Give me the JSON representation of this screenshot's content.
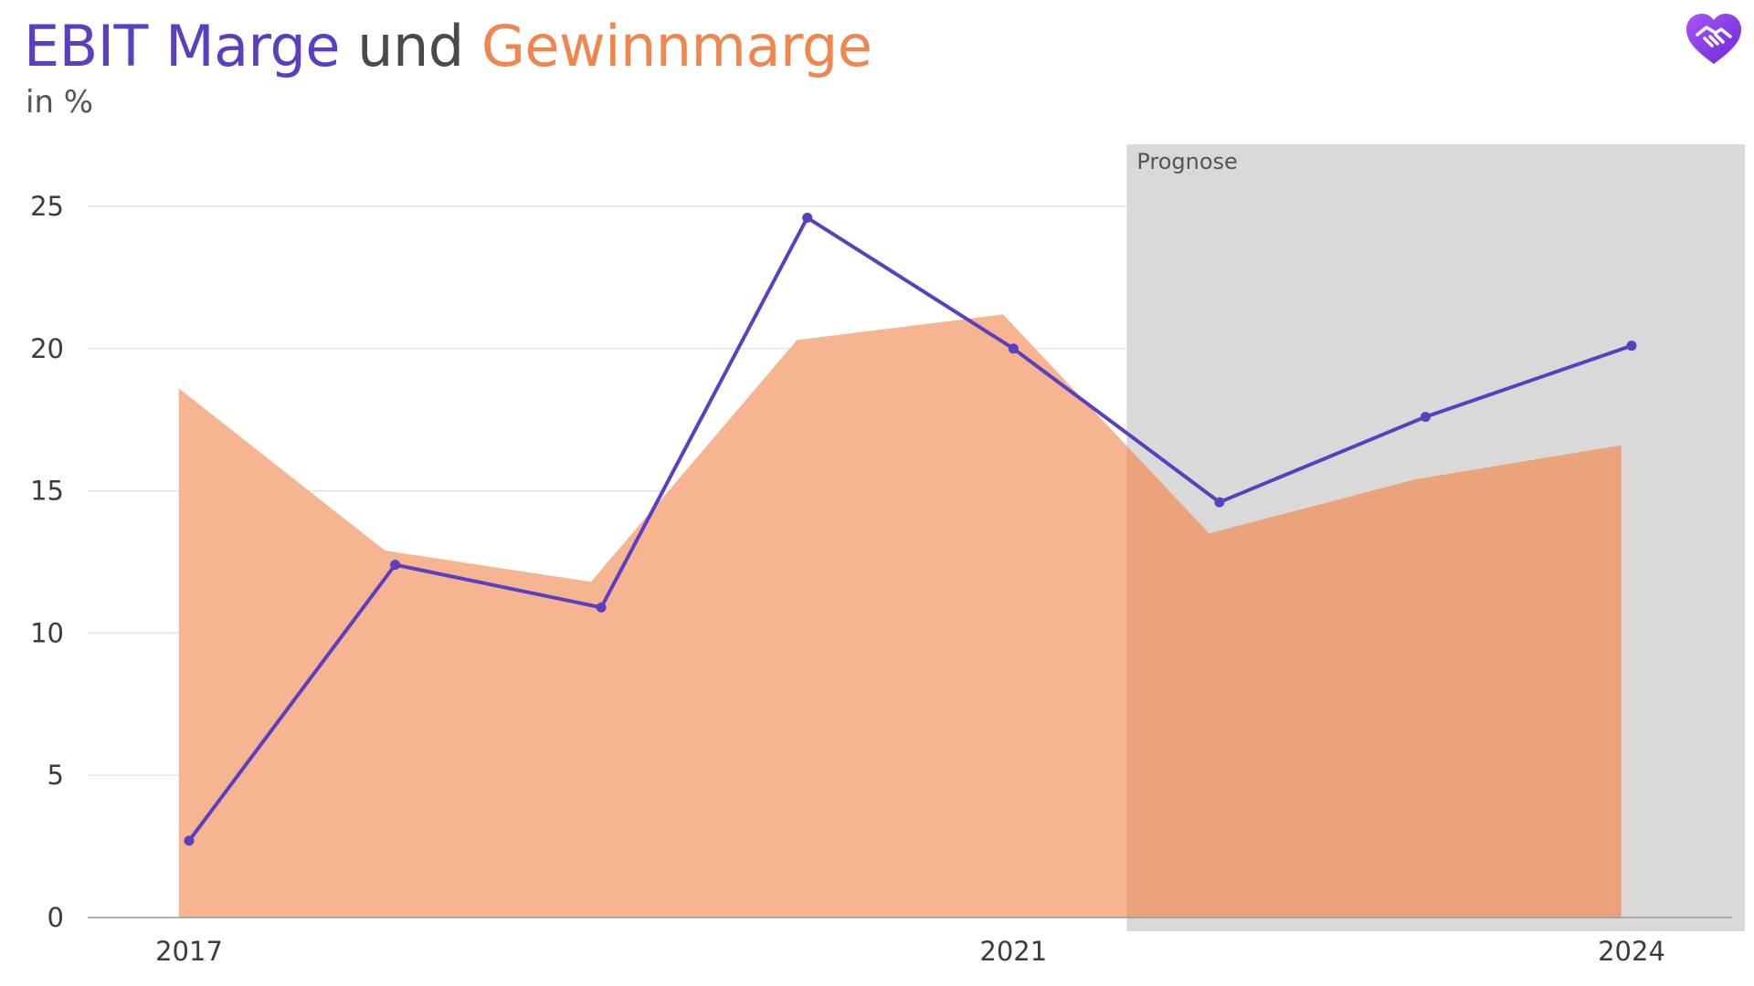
{
  "title": {
    "part1": "EBIT Marge",
    "part2": " und ",
    "part3": "Gewinnmarge"
  },
  "subtitle": "in %",
  "colors": {
    "ebit": "#5a40c0",
    "gewinn": "#f0864e",
    "gewinn_fill": "#f7b490",
    "forecast_bg": "#d9d9d9",
    "text": "#4a4a4a",
    "grid": "#dddddd"
  },
  "logo": {
    "icon": "heart-handshake-icon"
  },
  "chart_data": {
    "type": "area",
    "x": [
      2017,
      2018,
      2019,
      2020,
      2021,
      2022,
      2023,
      2024
    ],
    "x_tick_labels": [
      "2017",
      "2021",
      "2024"
    ],
    "x_tick_values": [
      2017,
      2021,
      2024
    ],
    "y_tick_labels": [
      "0",
      "5",
      "10",
      "15",
      "20",
      "25"
    ],
    "ylim": [
      0,
      25
    ],
    "grid": true,
    "forecast": {
      "label": "Prognose",
      "start": 2021.55,
      "end": 2024.5
    },
    "series": [
      {
        "key": "gewinn",
        "type": "area",
        "values": [
          18.6,
          12.9,
          11.8,
          20.3,
          21.2,
          13.5,
          15.4,
          16.6
        ],
        "x_override": [
          2016.95,
          2017.95,
          2018.95,
          2019.95,
          2020.95,
          2021.95,
          2022.95,
          2023.95
        ]
      },
      {
        "key": "ebit",
        "type": "line",
        "values": [
          2.7,
          12.4,
          10.9,
          24.6,
          20.0,
          14.6,
          17.6,
          20.1
        ]
      }
    ]
  }
}
